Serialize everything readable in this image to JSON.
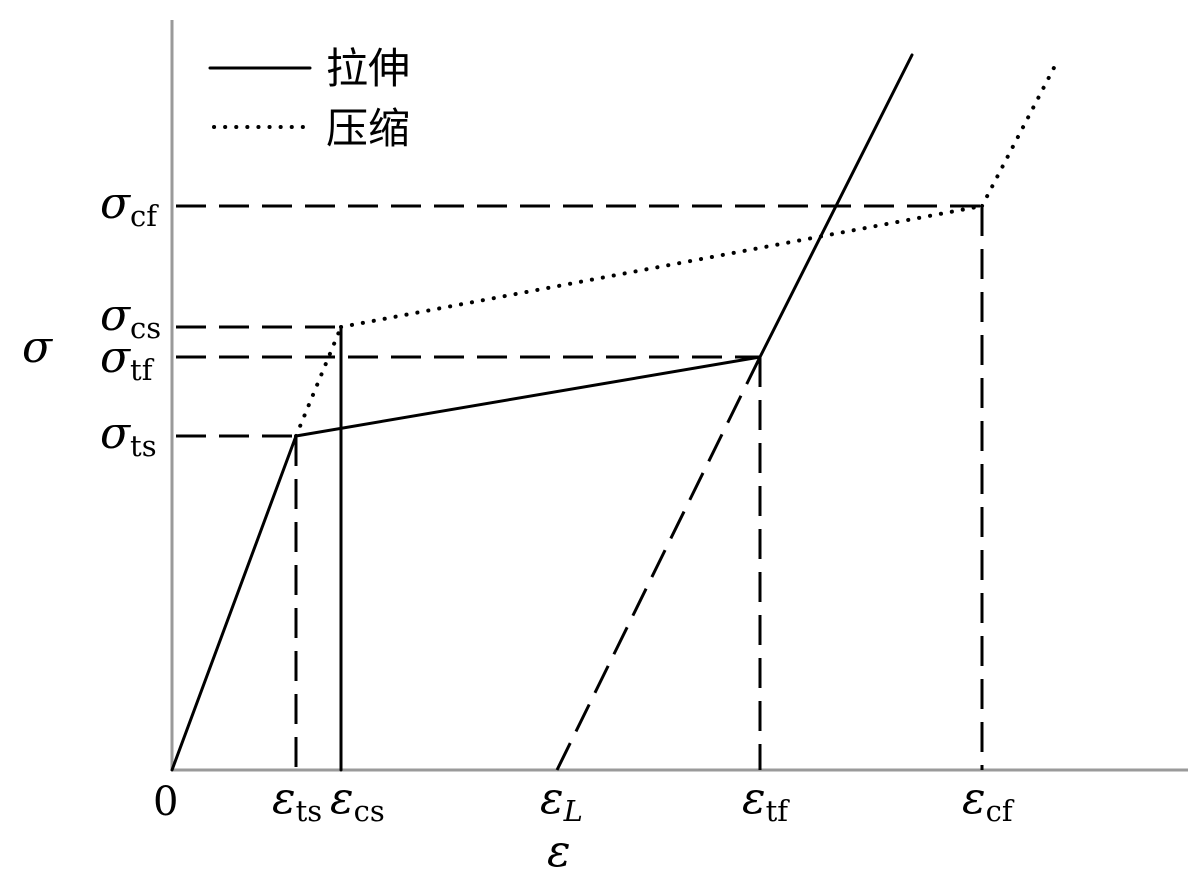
{
  "legend": {
    "tension_label": "拉伸",
    "compression_label": "压缩"
  },
  "axes": {
    "y_symbol": "σ",
    "x_symbol": "ε",
    "origin": "0"
  },
  "y_ticks": [
    {
      "sym": "σ",
      "sub": "cf"
    },
    {
      "sym": "σ",
      "sub": "cs"
    },
    {
      "sym": "σ",
      "sub": "tf"
    },
    {
      "sym": "σ",
      "sub": "ts"
    }
  ],
  "x_ticks": [
    {
      "sym": "ε",
      "sub": "ts"
    },
    {
      "sym": "ε",
      "sub": "cs"
    },
    {
      "sym": "ε",
      "sub": "L"
    },
    {
      "sym": "ε",
      "sub": "tf"
    },
    {
      "sym": "ε",
      "sub": "cf"
    }
  ],
  "colors": {
    "axis": "#9a9a9a",
    "line": "#000000"
  }
}
